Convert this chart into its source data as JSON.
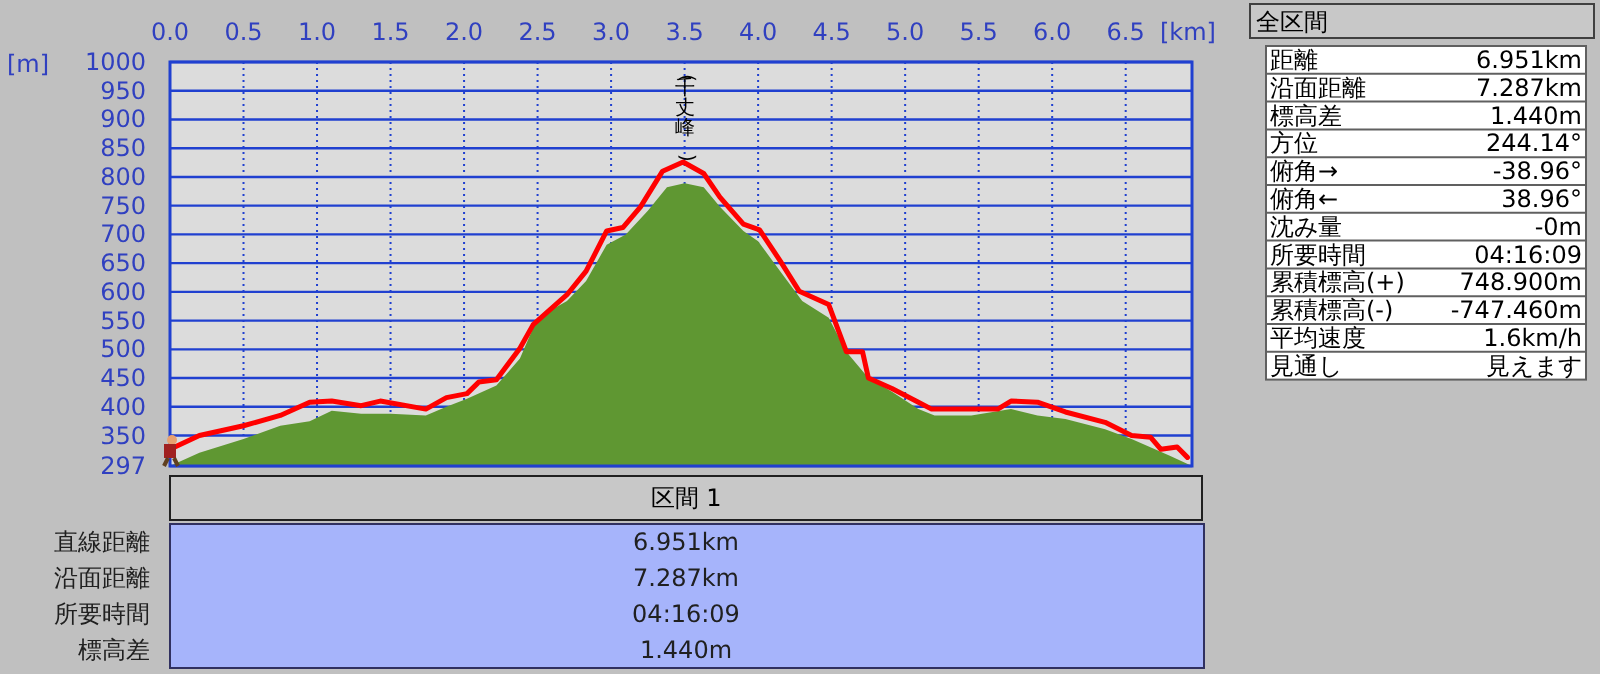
{
  "chart_data": [
    {
      "type": "area",
      "xlabel": "[km]",
      "ylabel": "[m]",
      "xlim": [
        0,
        6.951
      ],
      "ylim": [
        297,
        1000
      ],
      "xticks": [
        {
          "value": 0,
          "label": "0.0"
        },
        {
          "value": 0.5,
          "label": "0.5"
        },
        {
          "value": 1,
          "label": "1.0"
        },
        {
          "value": 1.5,
          "label": "1.5"
        },
        {
          "value": 2,
          "label": "2.0"
        },
        {
          "value": 2.5,
          "label": "2.5"
        },
        {
          "value": 3,
          "label": "3.0"
        },
        {
          "value": 3.5,
          "label": "3.5"
        },
        {
          "value": 4,
          "label": "4.0"
        },
        {
          "value": 4.5,
          "label": "4.5"
        },
        {
          "value": 5,
          "label": "5.0"
        },
        {
          "value": 5.5,
          "label": "5.5"
        },
        {
          "value": 6,
          "label": "6.0"
        },
        {
          "value": 6.5,
          "label": "6.5"
        }
      ],
      "yticks": [
        297,
        350,
        400,
        450,
        500,
        550,
        600,
        650,
        700,
        750,
        800,
        850,
        900,
        950,
        1000
      ],
      "grid": true,
      "annotations": [
        {
          "text": "(千丈峰)",
          "x": 3.5,
          "y": 826
        }
      ],
      "series": [
        {
          "type": "area",
          "color": "#5f9732",
          "x": [
            0,
            0.2,
            0.5,
            0.75,
            0.95,
            1.1,
            1.3,
            1.5,
            1.74,
            1.88,
            2.02,
            2.22,
            2.38,
            2.5,
            2.7,
            2.83,
            2.97,
            3.1,
            3.25,
            3.38,
            3.5,
            3.63,
            3.74,
            3.9,
            4.0,
            4.15,
            4.3,
            4.48,
            4.6,
            4.75,
            4.91,
            5.09,
            5.2,
            5.45,
            5.72,
            5.9,
            6.09,
            6.36,
            6.54,
            6.8,
            6.951
          ],
          "values": [
            297,
            320,
            344,
            367,
            375,
            393,
            388,
            388,
            385,
            400,
            414,
            437,
            484,
            555,
            584,
            619,
            682,
            700,
            741,
            782,
            789,
            782,
            748,
            706,
            688,
            636,
            584,
            555,
            496,
            450,
            426,
            396,
            385,
            385,
            396,
            385,
            379,
            361,
            344,
            315,
            297
          ]
        },
        {
          "type": "line",
          "color": "#ff0000",
          "x": [
            0,
            0.2,
            0.5,
            0.75,
            0.95,
            1.1,
            1.3,
            1.43,
            1.74,
            1.88,
            2.02,
            2.1,
            2.22,
            2.38,
            2.47,
            2.7,
            2.83,
            2.97,
            3.08,
            3.2,
            3.35,
            3.49,
            3.63,
            3.74,
            3.9,
            4.01,
            4.15,
            4.28,
            4.48,
            4.6,
            4.71,
            4.75,
            4.91,
            5.09,
            5.18,
            5.45,
            5.63,
            5.72,
            5.9,
            6.09,
            6.36,
            6.54,
            6.67,
            6.74,
            6.85,
            6.92
          ],
          "values": [
            326,
            350,
            367,
            385,
            408,
            410,
            402,
            410,
            396,
            416,
            423,
            443,
            447,
            502,
            543,
            595,
            636,
            706,
            712,
            748,
            810,
            826,
            806,
            765,
            718,
            708,
            654,
            601,
            578,
            496,
            496,
            450,
            432,
            408,
            396,
            396,
            396,
            410,
            408,
            391,
            373,
            350,
            347,
            326,
            330,
            312
          ]
        }
      ]
    },
    {
      "type": "other",
      "title": "全区間",
      "annotations": [
        "距離",
        "6.951km",
        "沿面距離",
        "7.287km",
        "標高差",
        "1.440m",
        "方位",
        "244.14°",
        "俯角→",
        "-38.96°",
        "俯角←",
        "38.96°",
        "沈み量",
        "-0m",
        "所要時間",
        "04:16:09",
        "累積標高(+)",
        "748.900m",
        "累積標高(-)",
        "-747.460m",
        "平均速度",
        "1.6km/h",
        "見通し",
        "見えます"
      ]
    },
    {
      "type": "other",
      "title": "区間 1",
      "annotations": [
        "直線距離",
        "6.951km",
        "沿面距離",
        "7.287km",
        "所要時間",
        "04:16:09",
        "標高差",
        "1.440m"
      ]
    }
  ]
}
